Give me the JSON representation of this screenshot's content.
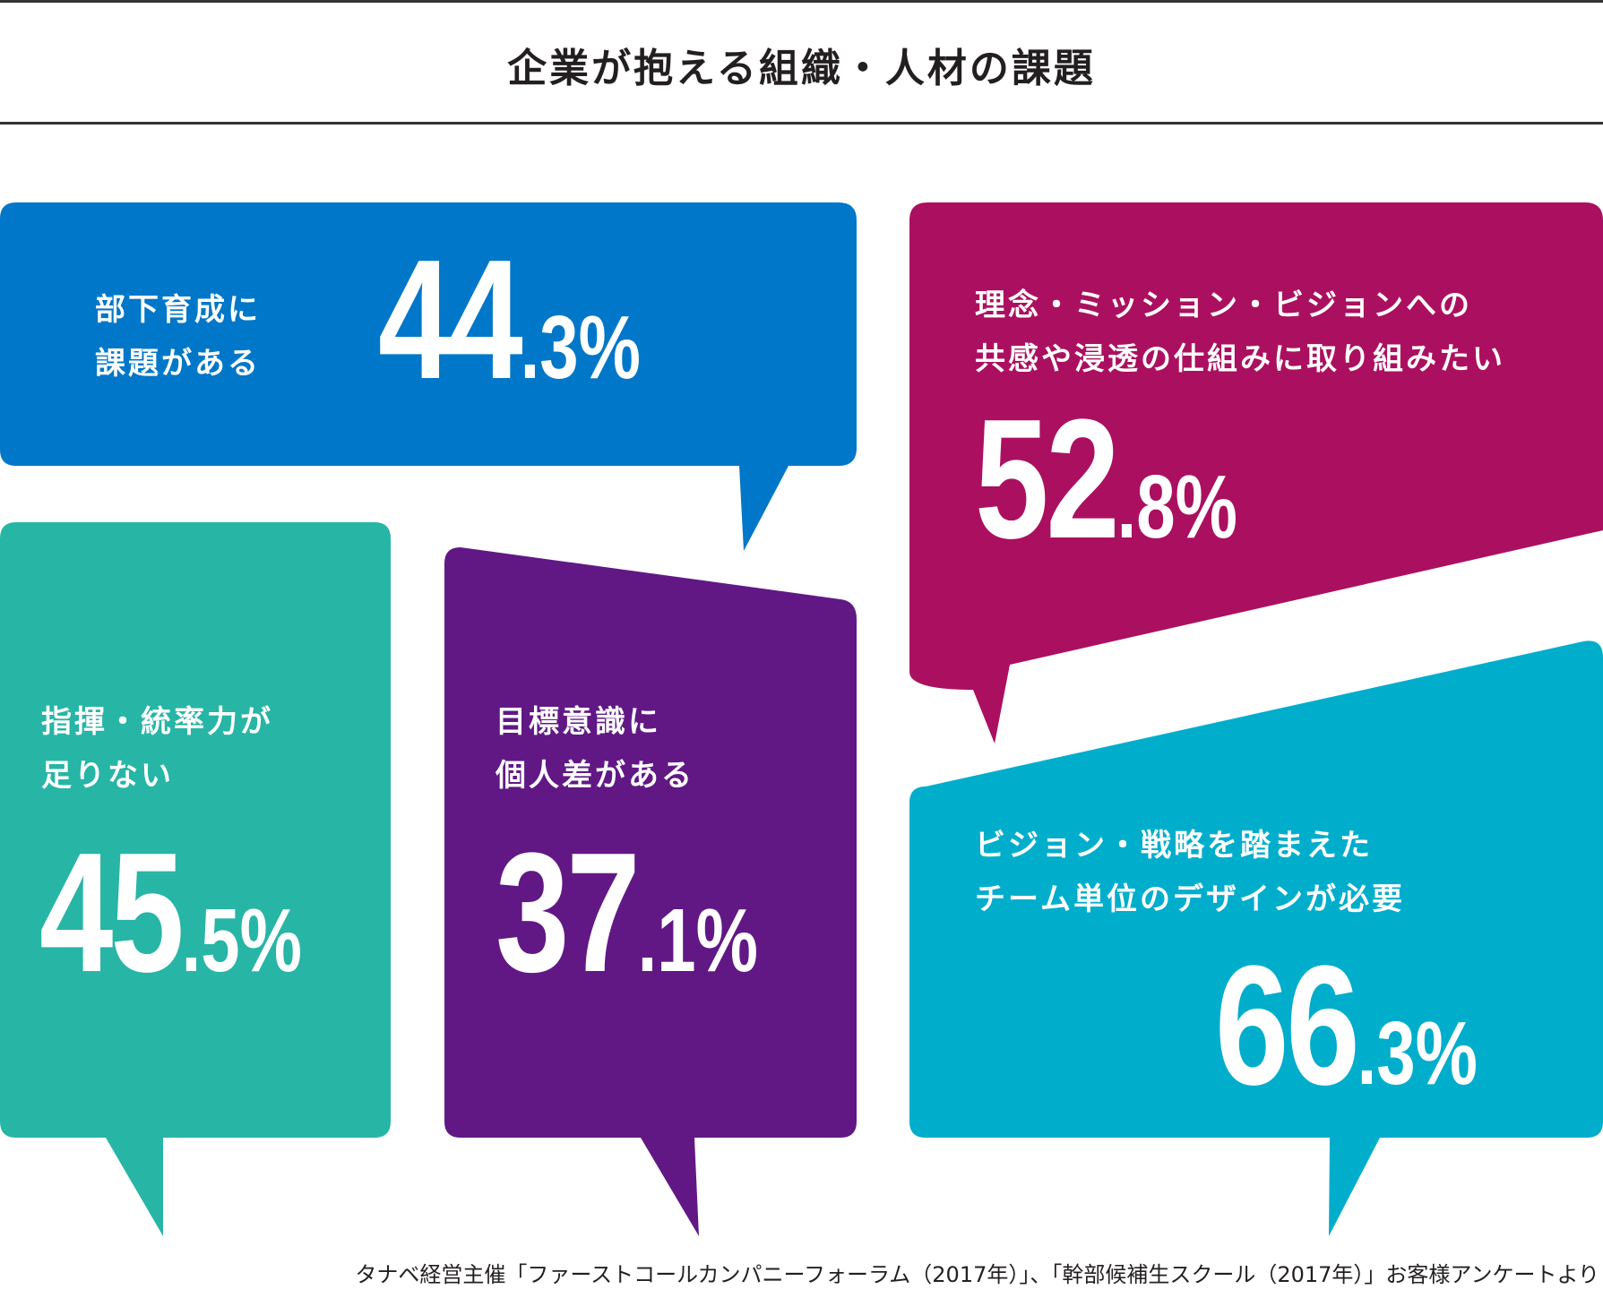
{
  "title": "企業が抱える組織・人材の課題",
  "chart_data": {
    "type": "table",
    "title": "企業が抱える組織・人材の課題",
    "unit": "%",
    "items": [
      {
        "label_lines": [
          "部下育成に",
          "課題がある"
        ],
        "value": 44.3,
        "int_text": "44",
        "dec_text": "3",
        "color": "#0077c8"
      },
      {
        "label_lines": [
          "理念・ミッション・ビジョンへの",
          "共感や浸透の仕組みに取り組みたい"
        ],
        "value": 52.8,
        "int_text": "52",
        "dec_text": "8",
        "color": "#ab1060"
      },
      {
        "label_lines": [
          "指揮・統率力が",
          "足りない"
        ],
        "value": 45.5,
        "int_text": "45",
        "dec_text": "5",
        "color": "#27b5a6"
      },
      {
        "label_lines": [
          "目標意識に",
          "個人差がある"
        ],
        "value": 37.1,
        "int_text": "37",
        "dec_text": "1",
        "color": "#611885"
      },
      {
        "label_lines": [
          "ビジョン・戦略を踏まえた",
          "チーム単位のデザインが必要"
        ],
        "value": 66.3,
        "int_text": "66",
        "dec_text": "3",
        "color": "#00aecc"
      }
    ]
  },
  "source": "タナベ経営主催「ファーストコールカンパニーフォーラム（2017年）」、「幹部候補生スクール（2017年）」お客様アンケートより"
}
